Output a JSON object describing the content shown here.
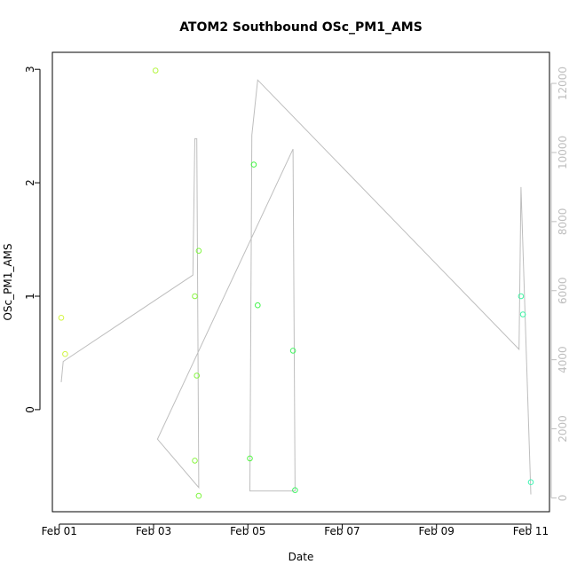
{
  "chart_data": {
    "type": "scatter",
    "title": "ATOM2 Southbound OSc_PM1_AMS",
    "xlabel": "Date",
    "ylabel": "OSc_PM1_AMS",
    "x_ticks": [
      "Feb 01",
      "Feb 03",
      "Feb 05",
      "Feb 07",
      "Feb 09",
      "Feb 11"
    ],
    "y_ticks": [
      "0",
      "1",
      "2",
      "3"
    ],
    "y2_ticks": [
      "0",
      "2000",
      "4000",
      "6000",
      "8000",
      "10000",
      "12000"
    ],
    "xlim": [
      "2018-01-31T20:30",
      "2018-02-11T09:30"
    ],
    "ylim": [
      -0.9,
      3.15
    ],
    "y2lim": [
      -400,
      12900
    ],
    "grid": false,
    "colors": {
      "axis": "#000000",
      "right_axis": "#bebebe",
      "track_line": "#bebebe"
    },
    "series": [
      {
        "points": [
          {
            "x": "2018-02-01T01:00",
            "y": 0.81,
            "color": "#d4f542"
          },
          {
            "x": "2018-02-01T03:00",
            "y": 0.49,
            "color": "#cff542"
          },
          {
            "x": "2018-02-03T01:00",
            "y": 2.99,
            "color": "#b5f542"
          },
          {
            "x": "2018-02-03T21:00",
            "y": 1.0,
            "color": "#8af542"
          },
          {
            "x": "2018-02-03T21:00",
            "y": -0.45,
            "color": "#8af542"
          },
          {
            "x": "2018-02-03T22:00",
            "y": 0.3,
            "color": "#85f542"
          },
          {
            "x": "2018-02-03T23:00",
            "y": 1.4,
            "color": "#80f542"
          },
          {
            "x": "2018-02-03T23:00",
            "y": -0.76,
            "color": "#80f542"
          },
          {
            "x": "2018-02-05T01:00",
            "y": -0.43,
            "color": "#52f542"
          },
          {
            "x": "2018-02-05T03:00",
            "y": 2.16,
            "color": "#42f542"
          },
          {
            "x": "2018-02-05T05:00",
            "y": 0.92,
            "color": "#42f54b"
          },
          {
            "x": "2018-02-05T23:00",
            "y": 0.52,
            "color": "#42f560"
          },
          {
            "x": "2018-02-06T00:00",
            "y": -0.71,
            "color": "#42f566"
          },
          {
            "x": "2018-02-10T19:00",
            "y": 1.0,
            "color": "#42f5a4"
          },
          {
            "x": "2018-02-10T20:00",
            "y": 0.84,
            "color": "#42f5a8"
          },
          {
            "x": "2018-02-11T00:00",
            "y": -0.64,
            "color": "#42f5b5"
          }
        ]
      },
      {
        "axis": "right",
        "type": "line",
        "points": [
          {
            "x": "2018-02-01T01:00",
            "y": 3350
          },
          {
            "x": "2018-02-01T02:00",
            "y": 3950
          },
          {
            "x": "2018-02-03T20:00",
            "y": 6450
          },
          {
            "x": "2018-02-03T21:00",
            "y": 10400
          },
          {
            "x": "2018-02-03T22:00",
            "y": 10400
          },
          {
            "x": "2018-02-03T23:00",
            "y": 300
          },
          {
            "x": "2018-02-03T02:00",
            "y": 1700
          },
          {
            "x": "2018-02-05T23:00",
            "y": 10100
          },
          {
            "x": "2018-02-06T00:00",
            "y": 200
          },
          {
            "x": "2018-02-05T01:00",
            "y": 200
          },
          {
            "x": "2018-02-05T02:00",
            "y": 10500
          },
          {
            "x": "2018-02-05T05:00",
            "y": 12100
          },
          {
            "x": "2018-02-10T18:00",
            "y": 4300
          },
          {
            "x": "2018-02-10T19:00",
            "y": 9000
          },
          {
            "x": "2018-02-11T00:00",
            "y": 100
          }
        ]
      }
    ]
  }
}
